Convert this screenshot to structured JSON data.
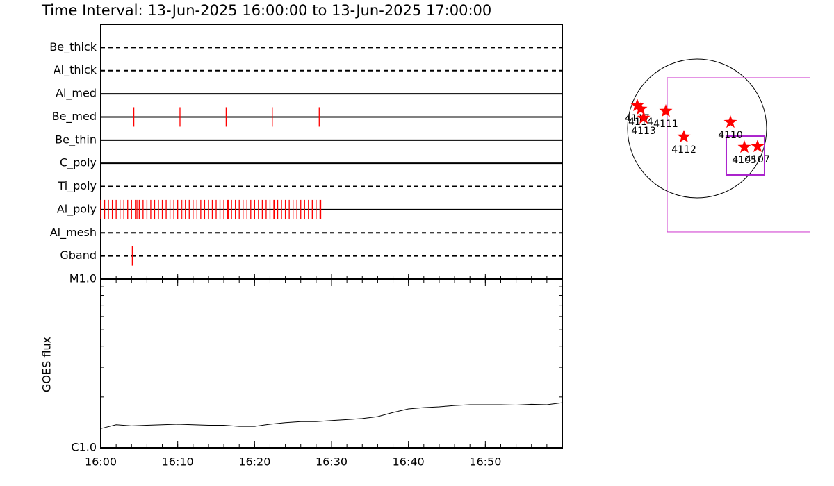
{
  "title": "Time Interval: 13-Jun-2025 16:00:00 to 13-Jun-2025 17:00:00",
  "timeline": {
    "event_color": "#ff0000",
    "rows": [
      {
        "name": "Be_thick",
        "style": "dashed",
        "events": []
      },
      {
        "name": "Al_thick",
        "style": "dashed",
        "events": []
      },
      {
        "name": "Al_med",
        "style": "solid",
        "events": []
      },
      {
        "name": "Be_med",
        "style": "solid",
        "events": [
          4.3,
          10.3,
          16.3,
          22.3,
          28.4
        ]
      },
      {
        "name": "Be_thin",
        "style": "solid",
        "events": []
      },
      {
        "name": "C_poly",
        "style": "solid",
        "events": []
      },
      {
        "name": "Ti_poly",
        "style": "dashed",
        "events": []
      },
      {
        "name": "Al_poly",
        "style": "solid",
        "events": [
          0,
          0.5,
          1,
          1.5,
          2,
          2.5,
          3,
          3.5,
          4,
          4.5,
          4.7,
          5,
          5.5,
          6,
          6.5,
          7,
          7.5,
          8,
          8.5,
          9,
          9.5,
          10,
          10.5,
          10.7,
          11,
          11.5,
          12,
          12.5,
          13,
          13.5,
          14,
          14.5,
          15,
          15.5,
          16,
          16.5,
          16.6,
          17,
          17.5,
          18,
          18.5,
          19,
          19.5,
          20,
          20.5,
          21,
          21.5,
          22,
          22.5,
          22.6,
          23,
          23.5,
          24,
          24.5,
          25,
          25.5,
          26,
          26.5,
          27,
          27.5,
          28,
          28.5,
          28.6
        ]
      },
      {
        "name": "Al_mesh",
        "style": "dashed",
        "events": []
      },
      {
        "name": "Gband",
        "style": "dashed",
        "events": [
          4.1
        ]
      }
    ]
  },
  "chart_data": {
    "type": "line",
    "ylabel": "GOES flux",
    "log_y": true,
    "color": "#000000",
    "xlim": [
      0,
      60
    ],
    "xticks": [
      {
        "value": 0,
        "label": "16:00"
      },
      {
        "value": 10,
        "label": "16:10"
      },
      {
        "value": 20,
        "label": "16:20"
      },
      {
        "value": 30,
        "label": "16:30"
      },
      {
        "value": 40,
        "label": "16:40"
      },
      {
        "value": 50,
        "label": "16:50"
      }
    ],
    "ylim": [
      1e-06,
      1e-05
    ],
    "yticks": [
      {
        "value": 1e-06,
        "label": "C1.0"
      },
      {
        "value": 1e-05,
        "label": "M1.0"
      }
    ],
    "x": [
      0,
      2,
      4,
      6,
      8,
      10,
      12,
      14,
      16,
      18,
      20,
      22,
      24,
      26,
      28,
      30,
      32,
      34,
      36,
      38,
      40,
      42,
      44,
      46,
      48,
      50,
      52,
      54,
      56,
      58,
      60
    ],
    "values": [
      1.3e-06,
      1.37e-06,
      1.35e-06,
      1.36e-06,
      1.37e-06,
      1.38e-06,
      1.37e-06,
      1.36e-06,
      1.36e-06,
      1.34e-06,
      1.34e-06,
      1.38e-06,
      1.41e-06,
      1.43e-06,
      1.43e-06,
      1.45e-06,
      1.47e-06,
      1.49e-06,
      1.53e-06,
      1.62e-06,
      1.7e-06,
      1.73e-06,
      1.75e-06,
      1.78e-06,
      1.8e-06,
      1.8e-06,
      1.8e-06,
      1.79e-06,
      1.81e-06,
      1.8e-06,
      1.85e-06
    ]
  },
  "sun_map": {
    "rsun": 960,
    "star_color": "#ff0000",
    "regions": [
      {
        "label": "4117",
        "x": -826,
        "y": 317
      },
      {
        "label": "4114",
        "x": -778,
        "y": 269
      },
      {
        "label": "4113",
        "x": -739,
        "y": 144
      },
      {
        "label": "4111",
        "x": -432,
        "y": 240
      },
      {
        "label": "4112",
        "x": -182,
        "y": -115
      },
      {
        "label": "4110",
        "x": 461,
        "y": 86
      },
      {
        "label": "4105",
        "x": 653,
        "y": -259
      },
      {
        "label": "4107",
        "x": 835,
        "y": -250
      }
    ],
    "fov": [
      {
        "x0": -413,
        "x1": 1650,
        "y0": -1430,
        "y1": 701,
        "color": "#cc33cc"
      },
      {
        "x0": 403,
        "x1": 931,
        "y0": -643,
        "y1": -106,
        "color": "#aa22cc"
      }
    ]
  }
}
